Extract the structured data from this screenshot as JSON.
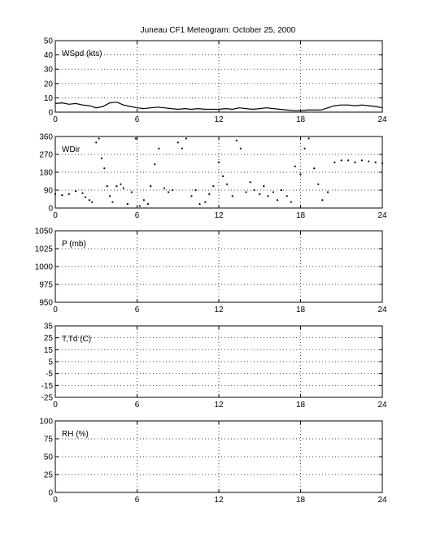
{
  "title": "Juneau CF1 Meteogram:    October 25, 2000",
  "chart_data": [
    {
      "type": "line",
      "ylabel": "WSpd (kts)",
      "xlim": [
        0,
        24
      ],
      "ylim": [
        0,
        50
      ],
      "xticks": [
        0,
        6,
        12,
        18,
        24
      ],
      "yticks": [
        0,
        10,
        20,
        30,
        40,
        50
      ],
      "grid": true,
      "series": [
        {
          "style": "line",
          "color": "#000000",
          "x": [
            0,
            0.5,
            1,
            1.5,
            2,
            2.5,
            3,
            3.5,
            4,
            4.5,
            5,
            5.5,
            6,
            6.5,
            7,
            7.5,
            8,
            8.5,
            9,
            9.5,
            10,
            10.5,
            11,
            11.5,
            12,
            12.5,
            13,
            13.5,
            14,
            14.5,
            15,
            15.5,
            16,
            16.5,
            17,
            17.5,
            18,
            18.5,
            19,
            19.5,
            20,
            20.5,
            21,
            21.5,
            22,
            22.5,
            23,
            23.5,
            24
          ],
          "values": [
            6,
            6.5,
            5.5,
            6,
            5,
            4.5,
            3,
            4,
            6.5,
            7,
            5,
            4,
            3,
            2.5,
            3,
            3.5,
            3,
            2.5,
            2,
            2.5,
            2,
            2.5,
            2,
            2,
            2,
            2.5,
            2,
            3,
            2.5,
            2,
            2.5,
            3,
            2.5,
            2,
            1.5,
            1,
            1,
            1.5,
            1.5,
            1.5,
            3,
            4.5,
            5,
            5,
            4.5,
            5,
            4.5,
            4,
            3
          ]
        }
      ]
    },
    {
      "type": "scatter",
      "ylabel": "WDir",
      "xlim": [
        0,
        24
      ],
      "ylim": [
        0,
        360
      ],
      "xticks": [
        0,
        6,
        12,
        18,
        24
      ],
      "yticks": [
        0,
        90,
        180,
        270,
        360
      ],
      "grid": true,
      "series": [
        {
          "style": "points",
          "color": "#000000",
          "x": [
            0,
            0.5,
            1,
            1.5,
            2,
            2.2,
            2.5,
            2.7,
            3,
            3.2,
            3.4,
            3.6,
            3.8,
            4,
            4.2,
            4.5,
            4.8,
            5,
            5.3,
            5.6,
            5.9,
            6.2,
            6.5,
            6.8,
            7,
            7.3,
            7.6,
            8,
            8.3,
            8.6,
            9,
            9.3,
            9.6,
            10,
            10.3,
            10.6,
            11,
            11.3,
            11.6,
            12,
            12.3,
            12.6,
            13,
            13.3,
            13.6,
            14,
            14.3,
            14.6,
            15,
            15.3,
            15.6,
            16,
            16.3,
            16.6,
            17,
            17.3,
            17.6,
            18,
            18.3,
            18.6,
            19,
            19.3,
            19.6,
            20,
            20.5,
            21,
            21.5,
            22,
            22.5,
            23,
            23.5,
            24
          ],
          "values": [
            70,
            65,
            70,
            85,
            75,
            55,
            40,
            30,
            330,
            350,
            250,
            200,
            110,
            60,
            30,
            110,
            120,
            100,
            20,
            80,
            350,
            10,
            40,
            20,
            110,
            220,
            300,
            100,
            80,
            90,
            330,
            300,
            350,
            60,
            90,
            20,
            30,
            70,
            110,
            230,
            160,
            120,
            60,
            340,
            300,
            80,
            130,
            90,
            70,
            110,
            60,
            80,
            40,
            90,
            60,
            30,
            210,
            170,
            300,
            350,
            200,
            120,
            40,
            80,
            230,
            240,
            240,
            230,
            240,
            235,
            230,
            225
          ]
        }
      ]
    },
    {
      "type": "line",
      "ylabel": "P (mb)",
      "xlim": [
        0,
        24
      ],
      "ylim": [
        950,
        1050
      ],
      "xticks": [
        0,
        6,
        12,
        18,
        24
      ],
      "yticks": [
        950,
        975,
        1000,
        1025,
        1050
      ],
      "grid": true,
      "series": []
    },
    {
      "type": "line",
      "ylabel": "T,Td (C)",
      "xlim": [
        0,
        24
      ],
      "ylim": [
        -25,
        35
      ],
      "xticks": [
        0,
        6,
        12,
        18,
        24
      ],
      "yticks": [
        -25,
        -15,
        -5,
        5,
        15,
        25,
        35
      ],
      "grid": true,
      "series": []
    },
    {
      "type": "line",
      "ylabel": "RH (%)",
      "xlim": [
        0,
        24
      ],
      "ylim": [
        0,
        100
      ],
      "xticks": [
        0,
        6,
        12,
        18,
        24
      ],
      "yticks": [
        0,
        25,
        50,
        75,
        100
      ],
      "grid": true,
      "series": []
    }
  ]
}
